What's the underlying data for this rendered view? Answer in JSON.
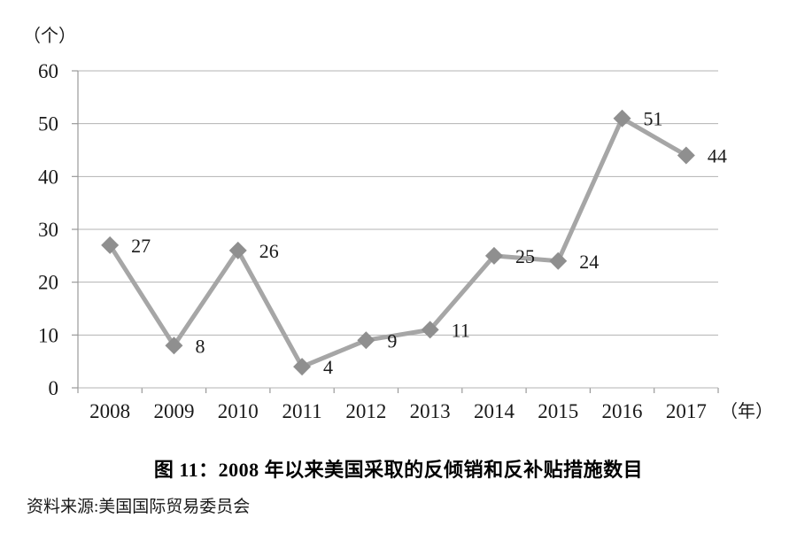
{
  "caption": {
    "title": "图 11：2008 年以来美国采取的反倾销和反补贴措施数目",
    "source": "资料来源:美国国际贸易委员会"
  },
  "chart_data": {
    "type": "line",
    "title": "图 11：2008 年以来美国采取的反倾销和反补贴措施数目",
    "source": "资料来源:美国国际贸易委员会",
    "categories": [
      "2008",
      "2009",
      "2010",
      "2011",
      "2012",
      "2013",
      "2014",
      "2015",
      "2016",
      "2017"
    ],
    "values": [
      27,
      8,
      26,
      4,
      9,
      11,
      25,
      24,
      51,
      44
    ],
    "y_axis_unit": "（个）",
    "x_axis_unit": "（年）",
    "ylim": [
      0,
      60
    ],
    "y_ticks": [
      0,
      10,
      20,
      30,
      40,
      50,
      60
    ],
    "grid": "horizontal",
    "legend_position": "none",
    "marker": "diamond",
    "line_color": "#a6a6a6",
    "marker_color": "#8f8f8f",
    "grid_color": "#b3b3b3",
    "axis_color": "#999999",
    "label_color": "#1a1a1a"
  }
}
